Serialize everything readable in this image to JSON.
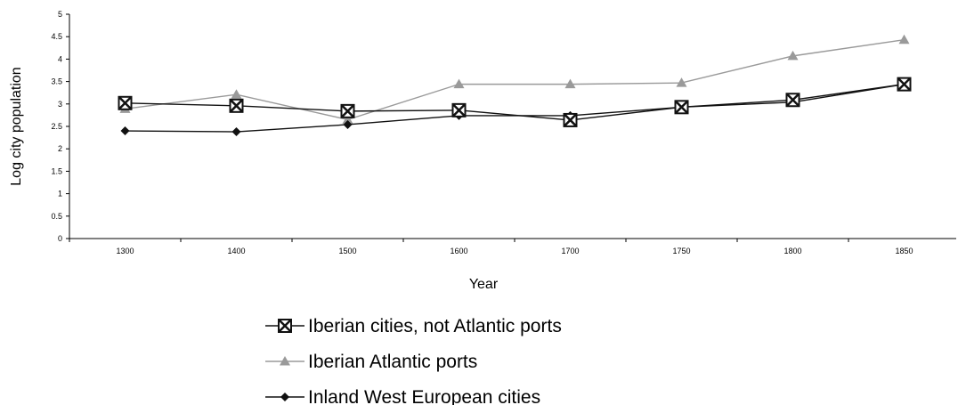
{
  "chart_data": {
    "type": "line",
    "title": "",
    "xlabel": "Year",
    "ylabel": "Log city population",
    "categories": [
      "1300",
      "1400",
      "1500",
      "1600",
      "1700",
      "1750",
      "1800",
      "1850"
    ],
    "ylim": [
      0,
      5
    ],
    "yticks": [
      "0",
      "0.5",
      "1",
      "1.5",
      "2",
      "2.5",
      "3",
      "3.5",
      "4",
      "4.5",
      "5"
    ],
    "grid": false,
    "legend_position": "bottom",
    "series": [
      {
        "name": "Iberian cities, not Atlantic ports",
        "values": [
          3.02,
          2.96,
          2.84,
          2.86,
          2.64,
          2.93,
          3.09,
          3.44
        ],
        "color": "#111111",
        "marker": "boxed-x"
      },
      {
        "name": "Iberian Atlantic ports",
        "values": [
          2.89,
          3.21,
          2.65,
          3.44,
          3.44,
          3.47,
          4.07,
          4.43
        ],
        "color": "#9a9a9a",
        "marker": "triangle"
      },
      {
        "name": "Inland West European cities",
        "values": [
          2.4,
          2.38,
          2.54,
          2.74,
          2.74,
          2.93,
          3.04,
          3.44
        ],
        "color": "#111111",
        "marker": "diamond"
      }
    ]
  }
}
